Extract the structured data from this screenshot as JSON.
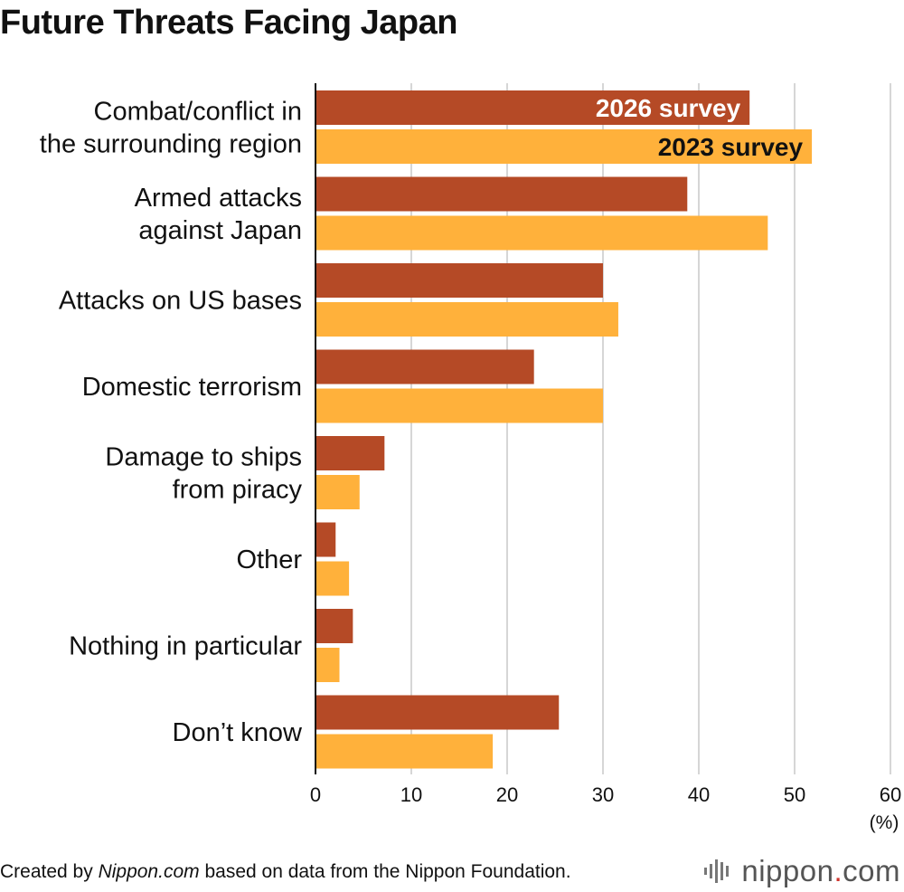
{
  "title": "Future Threats Facing Japan",
  "footer": {
    "prefix": "Created by ",
    "site": "Nippon.com",
    "suffix": " based on data from the Nippon Foundation."
  },
  "brand": {
    "name": "nippon",
    "dot": ".",
    "tld": "com"
  },
  "chart_data": {
    "type": "bar",
    "orientation": "horizontal",
    "categories": [
      [
        "Combat/conflict in",
        "the surrounding region"
      ],
      [
        "Armed attacks",
        "against Japan"
      ],
      [
        "Attacks on US bases"
      ],
      [
        "Domestic terrorism"
      ],
      [
        "Damage to ships",
        "from piracy"
      ],
      [
        "Other"
      ],
      [
        "Nothing in particular"
      ],
      [
        "Don’t know"
      ]
    ],
    "series": [
      {
        "name": "2026 survey",
        "color": "#b54a26",
        "label_color": "#ffffff",
        "values": [
          45.3,
          38.8,
          30.0,
          22.8,
          7.2,
          2.1,
          3.9,
          25.4
        ]
      },
      {
        "name": "2023 survey",
        "color": "#ffb13b",
        "label_color": "#111111",
        "values": [
          51.8,
          47.2,
          31.6,
          30.0,
          4.6,
          3.5,
          2.5,
          18.5
        ]
      }
    ],
    "xlim": [
      0,
      60
    ],
    "xticks": [
      0,
      10,
      20,
      30,
      40,
      50,
      60
    ],
    "unit_label": "(%)",
    "grid": true,
    "legend": "inside-first-bars"
  }
}
